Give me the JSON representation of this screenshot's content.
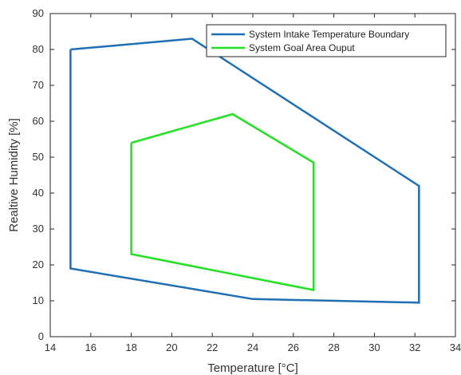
{
  "chart_data": {
    "type": "line",
    "xlabel": "Temperature [°C]",
    "ylabel": "Realtive Humidity [%]",
    "xlim": [
      14,
      34
    ],
    "ylim": [
      0,
      90
    ],
    "xticks": [
      14,
      16,
      18,
      20,
      22,
      24,
      26,
      28,
      30,
      32,
      34
    ],
    "yticks": [
      0,
      10,
      20,
      30,
      40,
      50,
      60,
      70,
      80,
      90
    ],
    "grid": false,
    "legend_position": "top-right",
    "series": [
      {
        "name": "System Intake Temperature Boundary",
        "color": "#1f6fb4",
        "x": [
          15,
          21,
          32.2,
          32.2,
          24,
          15,
          15
        ],
        "y": [
          80,
          83,
          42,
          9.5,
          10.5,
          19,
          80
        ]
      },
      {
        "name": "System Goal Area Ouput",
        "color": "#22e022",
        "x": [
          18,
          23,
          27,
          27,
          18,
          18
        ],
        "y": [
          54,
          62,
          48.5,
          13,
          23,
          54
        ]
      }
    ]
  }
}
